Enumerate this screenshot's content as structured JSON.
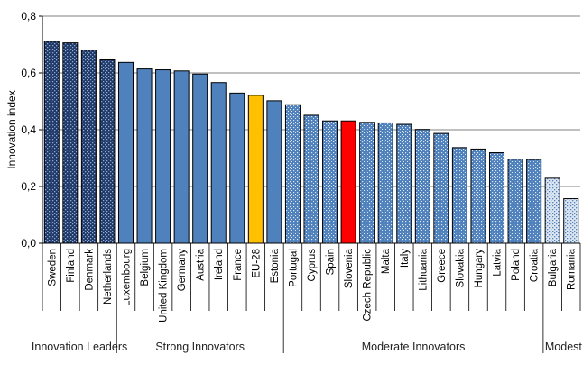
{
  "chart_data": {
    "type": "bar",
    "title": "",
    "xlabel": "",
    "ylabel": "Innovation index",
    "ylim": [
      0,
      0.8
    ],
    "yticks": [
      "0,0",
      "0,2",
      "0,4",
      "0,6",
      "0,8"
    ],
    "grid": true,
    "categories": [
      "Sweden",
      "Finland",
      "Denmark",
      "Netherlands",
      "Luxembourg",
      "Belgium",
      "United Kingdom",
      "Germany",
      "Austria",
      "Ireland",
      "France",
      "EU-28",
      "Estonia",
      "Portugal",
      "Cyprus",
      "Spain",
      "Slovenia",
      "Czech Republic",
      "Malta",
      "Italy",
      "Lithuania",
      "Greece",
      "Slovakia",
      "Hungary",
      "Latvia",
      "Poland",
      "Croatia",
      "Bulgaria",
      "Romania"
    ],
    "values": [
      0.711,
      0.706,
      0.68,
      0.646,
      0.637,
      0.614,
      0.611,
      0.607,
      0.596,
      0.566,
      0.529,
      0.521,
      0.502,
      0.488,
      0.451,
      0.431,
      0.431,
      0.426,
      0.424,
      0.419,
      0.401,
      0.387,
      0.337,
      0.332,
      0.319,
      0.296,
      0.295,
      0.229,
      0.157
    ],
    "groups": [
      {
        "name": "Innovation Leaders",
        "count": 4
      },
      {
        "name": "Strong Innovators",
        "count": 9
      },
      {
        "name": "Moderate Innovators",
        "count": 14
      },
      {
        "name": "Modest Innova",
        "count": 2
      }
    ],
    "highlight": {
      "EU-28": "#FFC000",
      "Slovenia": "#FF0000"
    },
    "colors": {
      "leaders": "#1F3864",
      "strong": "#4F81BD",
      "moderate": "#4F81BD",
      "modest": "#9DC3E6",
      "outline": "#000000",
      "grid": "#808080"
    }
  }
}
